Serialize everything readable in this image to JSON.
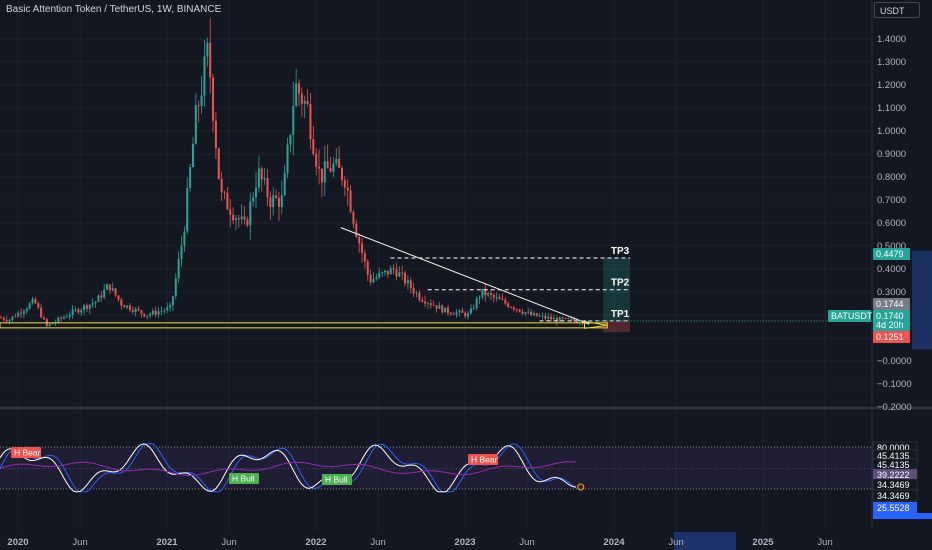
{
  "header": {
    "title": "Basic Attention Token / TetherUS, 1W, BINANCE",
    "currency": "USDT"
  },
  "price_axis": {
    "ticks": [
      "1.4000",
      "1.3000",
      "1.2000",
      "1.1000",
      "1.0000",
      "0.9000",
      "0.8000",
      "0.7000",
      "0.6000",
      "0.5000",
      "0.4000",
      "0.3000",
      "0.2000",
      "0.1000",
      "−0.0000",
      "−0.1000",
      "−0.2000"
    ],
    "tick_values": [
      1.4,
      1.3,
      1.2,
      1.1,
      1.0,
      0.9,
      0.8,
      0.7,
      0.6,
      0.5,
      0.4,
      0.3,
      0.2,
      0.1,
      0.0,
      -0.1,
      -0.2
    ],
    "badges": {
      "tp3": "0.4479",
      "tp1": "0.1744",
      "symbol": "BATUSDT",
      "last_price": "0.1740",
      "countdown": "4d 20h",
      "stop": "0.1251"
    }
  },
  "time_axis": {
    "labels": [
      "2020",
      "Jun",
      "2021",
      "Jun",
      "2022",
      "Jun",
      "2023",
      "Jun",
      "2024",
      "Jun",
      "2025",
      "Jun"
    ],
    "dates": [
      "2020-01-01",
      "2020-06-01",
      "2021-01-01",
      "2021-06-01",
      "2022-01-01",
      "2022-06-01",
      "2023-01-01",
      "2023-06-01",
      "2024-01-01",
      "2024-06-01",
      "2025-01-01",
      "2025-06-01"
    ]
  },
  "annotations": {
    "tp3": "TP3",
    "tp2": "TP2",
    "tp1": "TP1",
    "tp2_level": 0.31,
    "entry_level": 0.1744,
    "tp3_level": 0.4479,
    "stop_level": 0.1251,
    "support_level": 0.155,
    "trendline": {
      "start": [
        "2022-03-01",
        0.58
      ],
      "end": [
        "2023-11-01",
        0.16
      ]
    }
  },
  "oscillator": {
    "labels": {
      "h_bear_1": "H Bear",
      "h_bull_1": "H Bull",
      "h_bull_2": "H Bull",
      "h_bear_2": "H Bear"
    },
    "axis_badges": [
      "80.0000",
      "45.4135",
      "45.4135",
      "39.2222",
      "34.3469",
      "34.3469",
      "25.5528"
    ],
    "levels": [
      80,
      45.4135,
      39.2222,
      34.3469,
      25.5528
    ]
  },
  "colors": {
    "background": "#131722",
    "up": "#26a69a",
    "down": "#ef5350",
    "support": "#f5d742",
    "trendline": "#ffffff",
    "osc_fast": "#ffffff",
    "osc_slow": "#2962ff",
    "osc_signal": "#9c27b0"
  },
  "chart_data": {
    "type": "candlestick",
    "title": "Basic Attention Token / TetherUS, 1W, BINANCE",
    "ylim": [
      -0.2,
      1.5
    ],
    "series": [
      {
        "name": "BATUSDT",
        "x": [
          "2019-10",
          "2019-12",
          "2020-02",
          "2020-03",
          "2020-05",
          "2020-07",
          "2020-08",
          "2020-09",
          "2020-11",
          "2021-01",
          "2021-02",
          "2021-03",
          "2021-04",
          "2021-05",
          "2021-06",
          "2021-07",
          "2021-08",
          "2021-09",
          "2021-10",
          "2021-11",
          "2021-12",
          "2022-01",
          "2022-02",
          "2022-03",
          "2022-04",
          "2022-05",
          "2022-07",
          "2022-09",
          "2022-11",
          "2023-01",
          "2023-02",
          "2023-04",
          "2023-06",
          "2023-08",
          "2023-10"
        ],
        "values": [
          0.2,
          0.18,
          0.26,
          0.15,
          0.21,
          0.26,
          0.33,
          0.25,
          0.2,
          0.23,
          0.55,
          1.05,
          1.35,
          0.72,
          0.65,
          0.58,
          0.82,
          0.7,
          0.7,
          1.2,
          1.1,
          0.8,
          0.85,
          0.8,
          0.55,
          0.35,
          0.4,
          0.28,
          0.22,
          0.2,
          0.3,
          0.25,
          0.2,
          0.18,
          0.174
        ]
      }
    ]
  }
}
